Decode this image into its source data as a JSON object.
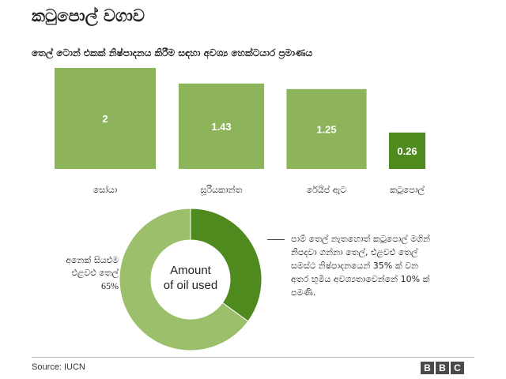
{
  "title": "කටුපොල් වගාව",
  "subtitle": "තෙල් ටොන් එකක් නිෂ්පාදනය කිරීම සඳහා අවශ්‍ය හෙක්ටයාර ප්‍රමාණය",
  "chart_data": [
    {
      "type": "bar",
      "categories": [
        "සෝයා",
        "සූරියකාන්ත",
        "රේයිප් ඇට",
        "කටුපොල්"
      ],
      "values": [
        2,
        1.43,
        1.25,
        0.26
      ],
      "value_labels": [
        "2",
        "1.43",
        "1.25",
        "0.26"
      ],
      "ylim": [
        0,
        2
      ],
      "colors": [
        "#8db45a",
        "#8db45a",
        "#8db45a",
        "#4f8a1e"
      ],
      "title": "තෙල් ටොන් එකක් නිෂ්පාදනය කිරීම සඳහා අවශ්‍ය හෙක්ටයාර ප්‍රමාණය"
    },
    {
      "type": "pie",
      "donut": true,
      "center_label": [
        "Amount",
        "of oil used"
      ],
      "slices": [
        {
          "label": "පාම් තෙල් නැතහොත් කටුපොල් මගින් නිපදවා ගන්නා තෙල්",
          "value": 35,
          "color": "#4f8a1e"
        },
        {
          "label": "අනෙක් සියළුම එළවළු තෙල්",
          "value": 65,
          "color": "#9bbf6b"
        }
      ]
    }
  ],
  "notes": {
    "left_lines": [
      "අනෙක් සියළුම",
      "එළවළු තෙල්"
    ],
    "left_pct": "65%",
    "right_lines": [
      "පාම් තෙල් නැතහොත් කටුපොල් මගින්",
      "නිපදවා ගන්නා තෙල්, එළවළු තෙල්",
      "සමස්ථ නිෂ්පාදනයෙන් 35% ක් වන",
      "අතර භූමිය අවශ්‍යතාවෙන්නේ 10% ක්",
      "පමණි."
    ]
  },
  "source": "Source: IUCN",
  "logo": [
    "B",
    "B",
    "C"
  ]
}
